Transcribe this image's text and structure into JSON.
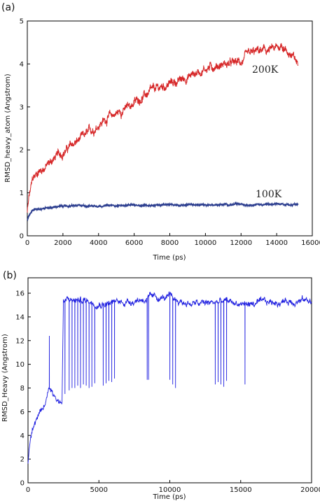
{
  "chart_data": [
    {
      "panel_label": "(a)",
      "type": "line",
      "xlabel": "Time (ps)",
      "ylabel": "RMSD_heavy_atom (Angstrom)",
      "xlim": [
        0,
        16000
      ],
      "ylim": [
        0,
        5
      ],
      "xticks": [
        "0",
        "2000",
        "4000",
        "6000",
        "8000",
        "10000",
        "12000",
        "14000",
        "16000"
      ],
      "yticks": [
        "0",
        "1",
        "2",
        "3",
        "4",
        "5"
      ],
      "grid": false,
      "series": [
        {
          "name": "200K",
          "color": "#d62728",
          "x": [
            0,
            100,
            300,
            600,
            1000,
            1500,
            2000,
            2500,
            3000,
            3500,
            4000,
            4500,
            5000,
            5500,
            6000,
            6500,
            7000,
            7500,
            8000,
            8500,
            9000,
            9500,
            10000,
            10500,
            11000,
            11500,
            12000,
            12500,
            13000,
            13500,
            14000,
            14300,
            14600,
            15000,
            15200
          ],
          "y": [
            0.55,
            0.9,
            1.3,
            1.5,
            1.6,
            1.8,
            1.95,
            2.1,
            2.25,
            2.4,
            2.6,
            2.75,
            2.85,
            2.95,
            3.1,
            3.25,
            3.35,
            3.45,
            3.55,
            3.6,
            3.7,
            3.8,
            3.9,
            3.95,
            4.0,
            4.0,
            4.05,
            4.2,
            4.3,
            4.3,
            4.35,
            4.45,
            4.3,
            4.1,
            4.0
          ]
        },
        {
          "name": "100K",
          "color": "#2c3e8f",
          "x": [
            0,
            100,
            300,
            600,
            1000,
            1500,
            2000,
            3000,
            4000,
            6000,
            8000,
            10000,
            12000,
            14000,
            15200
          ],
          "y": [
            0.38,
            0.5,
            0.6,
            0.63,
            0.65,
            0.67,
            0.69,
            0.7,
            0.7,
            0.71,
            0.72,
            0.72,
            0.73,
            0.73,
            0.73
          ]
        }
      ]
    },
    {
      "panel_label": "(b)",
      "type": "line",
      "xlabel": "Time (ps)",
      "ylabel": "RMSD_Heavy (Angstrom)",
      "xlim": [
        0,
        20000
      ],
      "ylim": [
        0,
        17.3
      ],
      "xticks": [
        "0",
        "5000",
        "10000",
        "15000",
        "20000"
      ],
      "yticks": [
        "0",
        "2",
        "4",
        "6",
        "8",
        "10",
        "12",
        "14",
        "16"
      ],
      "grid": false,
      "series": [
        {
          "name": "",
          "color": "#1f1fe0",
          "x": [
            0,
            100,
            300,
            600,
            900,
            1200,
            1500,
            1800,
            2100,
            2400,
            2500,
            3000,
            4000,
            5000,
            6000,
            7000,
            8000,
            9000,
            10000,
            11000,
            12000,
            13000,
            14000,
            15000,
            16000,
            17000,
            18000,
            19000,
            20000
          ],
          "y": [
            1.7,
            3.0,
            4.8,
            5.5,
            5.8,
            6.5,
            8.3,
            7.5,
            7.0,
            6.8,
            15.3,
            15.4,
            15.4,
            15.2,
            15.2,
            15.3,
            15.5,
            15.6,
            15.6,
            15.2,
            15.1,
            15.2,
            15.3,
            15.1,
            15.1,
            15.2,
            15.3,
            15.4,
            15.4
          ],
          "dips_x": [
            2600,
            2750,
            2900,
            3100,
            3300,
            3500,
            3700,
            3900,
            4100,
            4300,
            4500,
            4700,
            5300,
            5500,
            5700,
            5900,
            6100,
            8400,
            8500,
            10000,
            10200,
            10400,
            13200,
            13400,
            13600,
            13800,
            14000,
            15300
          ],
          "dips_y": [
            7.5,
            7.6,
            7.8,
            8.0,
            8.0,
            8.2,
            8.0,
            8.3,
            8.2,
            8.0,
            8.1,
            8.4,
            8.2,
            8.4,
            8.6,
            8.5,
            8.8,
            8.7,
            8.7,
            8.7,
            8.3,
            8.0,
            8.3,
            8.5,
            8.3,
            8.1,
            8.6,
            8.3
          ],
          "spikes_x": [
            1500
          ],
          "spikes_y": [
            12.4
          ]
        }
      ]
    }
  ]
}
